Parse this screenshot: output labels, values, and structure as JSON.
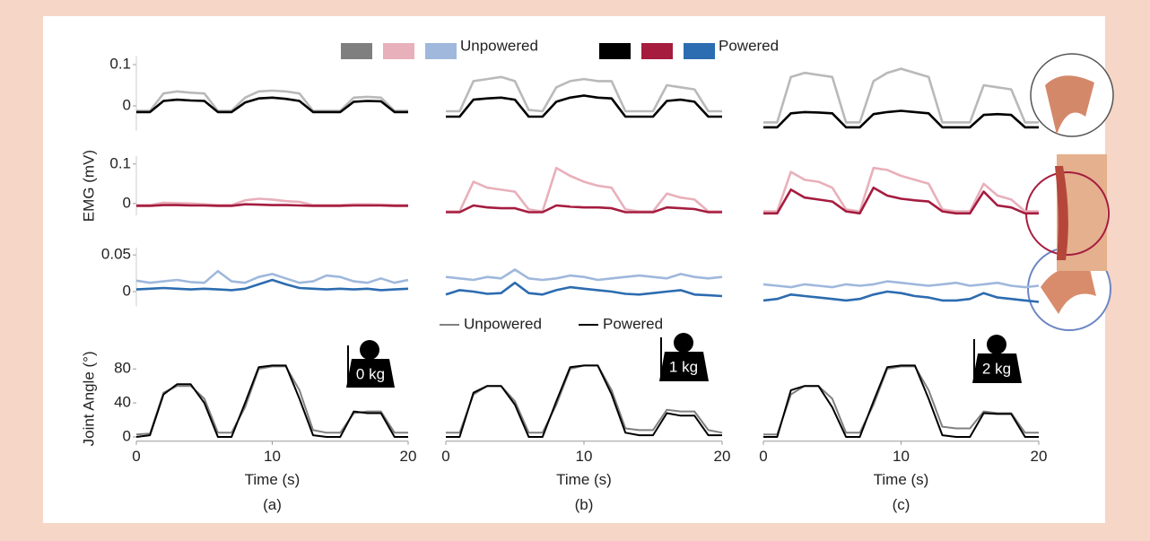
{
  "legend": [
    {
      "label": "Unpowered",
      "colors": [
        "#7f7f7f",
        "#e8b0bb",
        "#9fb8dc"
      ]
    },
    {
      "label": "Powered",
      "colors": [
        "#000000",
        "#a51c3f",
        "#2c6cb0"
      ]
    }
  ],
  "chart_data": [
    {
      "type": "line",
      "x": [
        0,
        1,
        2,
        3,
        4,
        5,
        6,
        7,
        8,
        9,
        10,
        11,
        12,
        13,
        14,
        15,
        16,
        17,
        18,
        19,
        20
      ],
      "xlim": [
        0,
        20
      ],
      "ylim": [
        -0.06,
        0.12
      ],
      "yticks": [
        0,
        0.1
      ],
      "series": [
        {
          "color": "#b9b9b9",
          "values": [
            -0.012,
            -0.012,
            0.03,
            0.035,
            0.032,
            0.03,
            -0.012,
            -0.012,
            0.02,
            0.035,
            0.037,
            0.035,
            0.03,
            -0.012,
            -0.012,
            -0.012,
            0.02,
            0.022,
            0.02,
            -0.012,
            -0.012
          ]
        },
        {
          "color": "#000000",
          "values": [
            -0.015,
            -0.015,
            0.012,
            0.015,
            0.013,
            0.012,
            -0.015,
            -0.015,
            0.008,
            0.018,
            0.02,
            0.017,
            0.012,
            -0.015,
            -0.015,
            -0.015,
            0.01,
            0.012,
            0.011,
            -0.015,
            -0.015
          ]
        }
      ]
    },
    {
      "type": "line",
      "x": [
        0,
        1,
        2,
        3,
        4,
        5,
        6,
        7,
        8,
        9,
        10,
        11,
        12,
        13,
        14,
        15,
        16,
        17,
        18,
        19,
        20
      ],
      "xlim": [
        0,
        20
      ],
      "ylim": [
        -0.06,
        0.12
      ],
      "series": [
        {
          "color": "#b9b9b9",
          "values": [
            -0.013,
            -0.013,
            0.06,
            0.065,
            0.07,
            0.06,
            -0.01,
            -0.013,
            0.045,
            0.06,
            0.065,
            0.06,
            0.06,
            -0.013,
            -0.013,
            -0.013,
            0.05,
            0.045,
            0.04,
            -0.013,
            -0.013
          ]
        },
        {
          "color": "#000000",
          "values": [
            -0.026,
            -0.026,
            0.015,
            0.018,
            0.02,
            0.015,
            -0.026,
            -0.026,
            0.01,
            0.02,
            0.025,
            0.02,
            0.018,
            -0.026,
            -0.026,
            -0.026,
            0.012,
            0.015,
            0.01,
            -0.026,
            -0.026
          ]
        }
      ]
    },
    {
      "type": "line",
      "x": [
        0,
        1,
        2,
        3,
        4,
        5,
        6,
        7,
        8,
        9,
        10,
        11,
        12,
        13,
        14,
        15,
        16,
        17,
        18,
        19,
        20
      ],
      "xlim": [
        0,
        20
      ],
      "ylim": [
        -0.06,
        0.12
      ],
      "series": [
        {
          "color": "#b9b9b9",
          "values": [
            -0.04,
            -0.04,
            0.07,
            0.08,
            0.075,
            0.07,
            -0.04,
            -0.04,
            0.06,
            0.08,
            0.09,
            0.08,
            0.07,
            -0.04,
            -0.04,
            -0.04,
            0.05,
            0.045,
            0.04,
            -0.04,
            -0.04
          ]
        },
        {
          "color": "#000000",
          "values": [
            -0.052,
            -0.052,
            -0.018,
            -0.015,
            -0.016,
            -0.018,
            -0.052,
            -0.052,
            -0.02,
            -0.015,
            -0.012,
            -0.015,
            -0.018,
            -0.052,
            -0.052,
            -0.052,
            -0.022,
            -0.02,
            -0.022,
            -0.052,
            -0.052
          ]
        }
      ]
    },
    {
      "type": "line",
      "x": [
        0,
        1,
        2,
        3,
        4,
        5,
        6,
        7,
        8,
        9,
        10,
        11,
        12,
        13,
        14,
        15,
        16,
        17,
        18,
        19,
        20
      ],
      "xlim": [
        0,
        20
      ],
      "ylim": [
        -0.03,
        0.12
      ],
      "yticks": [
        0,
        0.1
      ],
      "ylabel": "EMG (mV)",
      "series": [
        {
          "color": "#e8b0bb",
          "values": [
            -0.004,
            -0.004,
            0.002,
            0.001,
            0,
            -0.002,
            -0.004,
            -0.004,
            0.008,
            0.012,
            0.01,
            0.006,
            0.004,
            -0.004,
            -0.004,
            -0.004,
            -0.002,
            -0.002,
            -0.003,
            -0.004,
            -0.004
          ]
        },
        {
          "color": "#a51c3f",
          "values": [
            -0.006,
            -0.006,
            -0.004,
            -0.004,
            -0.005,
            -0.005,
            -0.006,
            -0.006,
            -0.002,
            -0.003,
            -0.004,
            -0.004,
            -0.005,
            -0.006,
            -0.006,
            -0.006,
            -0.005,
            -0.005,
            -0.005,
            -0.006,
            -0.006
          ]
        }
      ]
    },
    {
      "type": "line",
      "x": [
        0,
        1,
        2,
        3,
        4,
        5,
        6,
        7,
        8,
        9,
        10,
        11,
        12,
        13,
        14,
        15,
        16,
        17,
        18,
        19,
        20
      ],
      "xlim": [
        0,
        20
      ],
      "ylim": [
        -0.03,
        0.12
      ],
      "series": [
        {
          "color": "#e8b0bb",
          "values": [
            -0.02,
            -0.02,
            0.055,
            0.04,
            0.035,
            0.03,
            -0.015,
            -0.02,
            0.09,
            0.07,
            0.055,
            0.045,
            0.04,
            -0.015,
            -0.02,
            -0.02,
            0.025,
            0.015,
            0.01,
            -0.02,
            -0.02
          ]
        },
        {
          "color": "#a51c3f",
          "values": [
            -0.022,
            -0.022,
            -0.005,
            -0.01,
            -0.012,
            -0.012,
            -0.022,
            -0.022,
            -0.005,
            -0.008,
            -0.01,
            -0.01,
            -0.012,
            -0.022,
            -0.022,
            -0.022,
            -0.01,
            -0.012,
            -0.014,
            -0.022,
            -0.022
          ]
        }
      ]
    },
    {
      "type": "line",
      "x": [
        0,
        1,
        2,
        3,
        4,
        5,
        6,
        7,
        8,
        9,
        10,
        11,
        12,
        13,
        14,
        15,
        16,
        17,
        18,
        19,
        20
      ],
      "xlim": [
        0,
        20
      ],
      "ylim": [
        -0.03,
        0.12
      ],
      "series": [
        {
          "color": "#e8b0bb",
          "values": [
            -0.02,
            -0.02,
            0.08,
            0.06,
            0.055,
            0.04,
            -0.015,
            -0.02,
            0.09,
            0.085,
            0.07,
            0.06,
            0.05,
            -0.015,
            -0.02,
            -0.02,
            0.05,
            0.02,
            0.01,
            -0.02,
            -0.02
          ]
        },
        {
          "color": "#a51c3f",
          "values": [
            -0.025,
            -0.025,
            0.035,
            0.015,
            0.01,
            0.005,
            -0.02,
            -0.025,
            0.04,
            0.02,
            0.012,
            0.008,
            0.005,
            -0.02,
            -0.025,
            -0.025,
            0.03,
            -0.005,
            -0.01,
            -0.025,
            -0.025
          ]
        }
      ]
    },
    {
      "type": "line",
      "x": [
        0,
        1,
        2,
        3,
        4,
        5,
        6,
        7,
        8,
        9,
        10,
        11,
        12,
        13,
        14,
        15,
        16,
        17,
        18,
        19,
        20
      ],
      "xlim": [
        0,
        20
      ],
      "ylim": [
        -0.02,
        0.06
      ],
      "yticks": [
        0,
        0.05
      ],
      "series": [
        {
          "color": "#9fb8dc",
          "values": [
            0.015,
            0.012,
            0.014,
            0.016,
            0.013,
            0.012,
            0.028,
            0.014,
            0.012,
            0.02,
            0.024,
            0.018,
            0.012,
            0.014,
            0.022,
            0.02,
            0.014,
            0.012,
            0.018,
            0.012,
            0.016
          ]
        },
        {
          "color": "#2c6cb0",
          "values": [
            0.003,
            0.004,
            0.005,
            0.004,
            0.003,
            0.004,
            0.003,
            0.002,
            0.004,
            0.01,
            0.016,
            0.01,
            0.005,
            0.004,
            0.003,
            0.004,
            0.003,
            0.004,
            0.002,
            0.003,
            0.004
          ]
        }
      ]
    },
    {
      "type": "line",
      "x": [
        0,
        1,
        2,
        3,
        4,
        5,
        6,
        7,
        8,
        9,
        10,
        11,
        12,
        13,
        14,
        15,
        16,
        17,
        18,
        19,
        20
      ],
      "xlim": [
        0,
        20
      ],
      "ylim": [
        -0.02,
        0.06
      ],
      "series": [
        {
          "color": "#9fb8dc",
          "values": [
            0.02,
            0.018,
            0.016,
            0.02,
            0.018,
            0.03,
            0.018,
            0.016,
            0.018,
            0.022,
            0.02,
            0.016,
            0.018,
            0.02,
            0.022,
            0.02,
            0.018,
            0.024,
            0.02,
            0.018,
            0.02
          ]
        },
        {
          "color": "#2c6cb0",
          "values": [
            -0.004,
            0.002,
            0,
            -0.003,
            -0.002,
            0.012,
            -0.002,
            -0.004,
            0.002,
            0.006,
            0.004,
            0.002,
            0,
            -0.003,
            -0.004,
            -0.002,
            0,
            0.002,
            -0.004,
            -0.005,
            -0.006
          ]
        }
      ]
    },
    {
      "type": "line",
      "x": [
        0,
        1,
        2,
        3,
        4,
        5,
        6,
        7,
        8,
        9,
        10,
        11,
        12,
        13,
        14,
        15,
        16,
        17,
        18,
        19,
        20
      ],
      "xlim": [
        0,
        20
      ],
      "ylim": [
        -0.02,
        0.06
      ],
      "series": [
        {
          "color": "#9fb8dc",
          "values": [
            0.01,
            0.008,
            0.006,
            0.01,
            0.008,
            0.006,
            0.01,
            0.008,
            0.01,
            0.014,
            0.012,
            0.01,
            0.008,
            0.01,
            0.012,
            0.008,
            0.01,
            0.012,
            0.008,
            0.006,
            0.008
          ]
        },
        {
          "color": "#2c6cb0",
          "values": [
            -0.012,
            -0.01,
            -0.004,
            -0.006,
            -0.008,
            -0.01,
            -0.012,
            -0.01,
            -0.004,
            0,
            -0.002,
            -0.006,
            -0.008,
            -0.012,
            -0.012,
            -0.01,
            -0.002,
            -0.008,
            -0.01,
            -0.012,
            -0.014
          ]
        }
      ]
    },
    {
      "type": "line",
      "x": [
        0,
        1,
        2,
        3,
        4,
        5,
        6,
        7,
        8,
        9,
        10,
        11,
        12,
        13,
        14,
        15,
        16,
        17,
        18,
        19,
        20
      ],
      "xlim": [
        0,
        20
      ],
      "ylim": [
        -5,
        95
      ],
      "yticks": [
        0,
        40,
        80
      ],
      "xticks": [
        0,
        10,
        20
      ],
      "xlabel": "Time (s)",
      "ylabel": "Joint Angle (°)",
      "caption": "(a)",
      "annotation": "0 kg",
      "series": [
        {
          "color": "#808080",
          "values": [
            3,
            4,
            52,
            60,
            60,
            45,
            5,
            5,
            35,
            80,
            83,
            83,
            55,
            8,
            5,
            5,
            28,
            30,
            30,
            5,
            5
          ]
        },
        {
          "color": "#000000",
          "values": [
            0,
            2,
            50,
            62,
            62,
            40,
            0,
            0,
            40,
            82,
            84,
            84,
            45,
            2,
            0,
            0,
            30,
            28,
            28,
            0,
            0
          ]
        }
      ]
    },
    {
      "type": "line",
      "x": [
        0,
        1,
        2,
        3,
        4,
        5,
        6,
        7,
        8,
        9,
        10,
        11,
        12,
        13,
        14,
        15,
        16,
        17,
        18,
        19,
        20
      ],
      "xlim": [
        0,
        20
      ],
      "ylim": [
        -5,
        95
      ],
      "xticks": [
        0,
        10,
        20
      ],
      "xlabel": "Time (s)",
      "caption": "(b)",
      "annotation": "1 kg",
      "legend": "top",
      "series": [
        {
          "name": "Unpowered",
          "color": "#808080",
          "values": [
            5,
            5,
            50,
            60,
            60,
            42,
            5,
            5,
            38,
            80,
            84,
            84,
            55,
            10,
            8,
            8,
            32,
            30,
            30,
            8,
            5
          ]
        },
        {
          "name": "Powered",
          "color": "#000000",
          "values": [
            0,
            0,
            52,
            60,
            60,
            38,
            0,
            0,
            42,
            82,
            84,
            84,
            50,
            5,
            2,
            2,
            28,
            25,
            25,
            2,
            2
          ]
        }
      ]
    },
    {
      "type": "line",
      "x": [
        0,
        1,
        2,
        3,
        4,
        5,
        6,
        7,
        8,
        9,
        10,
        11,
        12,
        13,
        14,
        15,
        16,
        17,
        18,
        19,
        20
      ],
      "xlim": [
        0,
        20
      ],
      "ylim": [
        -5,
        95
      ],
      "xticks": [
        0,
        10,
        20
      ],
      "xlabel": "Time (s)",
      "caption": "(c)",
      "annotation": "2 kg",
      "series": [
        {
          "color": "#808080",
          "values": [
            3,
            3,
            50,
            60,
            60,
            45,
            5,
            5,
            38,
            80,
            83,
            83,
            55,
            12,
            10,
            10,
            30,
            28,
            28,
            5,
            5
          ]
        },
        {
          "color": "#000000",
          "values": [
            0,
            0,
            55,
            60,
            60,
            35,
            0,
            0,
            42,
            82,
            84,
            84,
            45,
            2,
            0,
            0,
            28,
            27,
            27,
            0,
            0
          ]
        }
      ]
    }
  ]
}
